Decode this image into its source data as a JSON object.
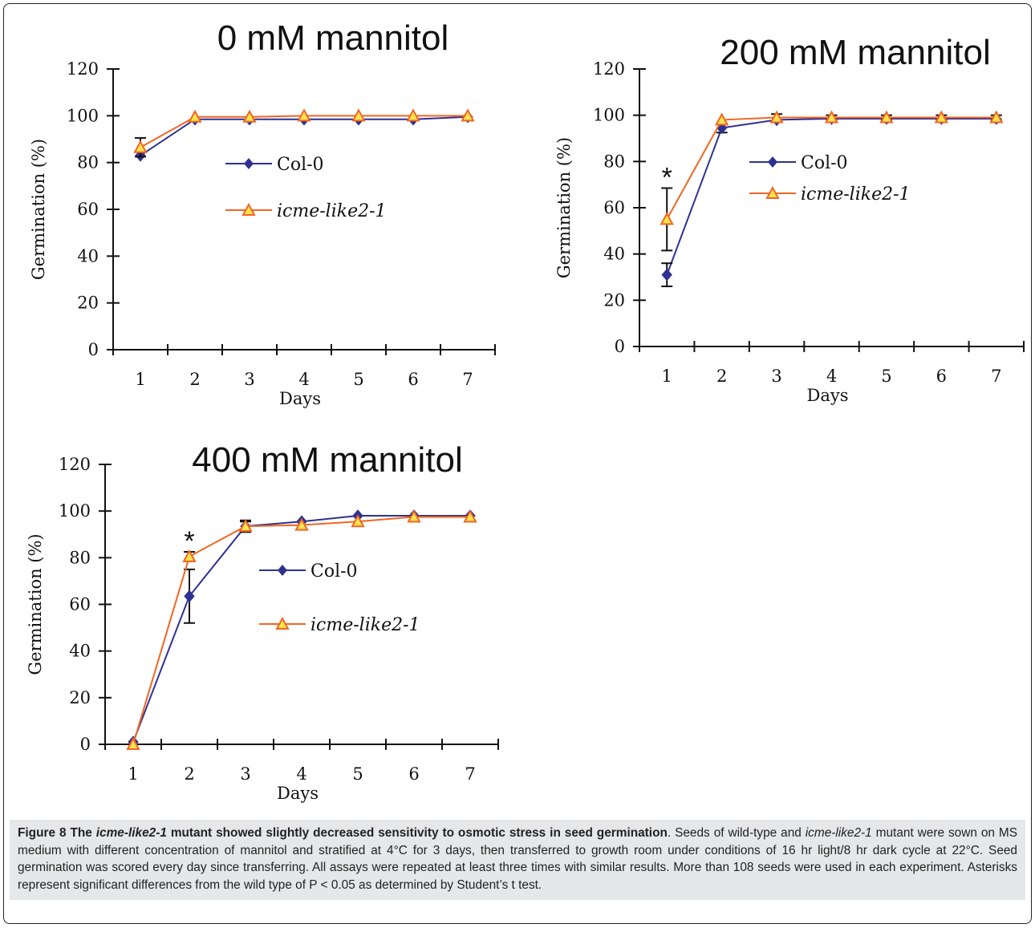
{
  "chart_data": [
    {
      "type": "line",
      "title": "0 mM mannitol",
      "xlabel": "Days",
      "ylabel": "Germination (%)",
      "categories": [
        "1",
        "2",
        "3",
        "4",
        "5",
        "6",
        "7"
      ],
      "ylim": [
        0,
        120
      ],
      "yticks": [
        "0",
        "20",
        "40",
        "60",
        "80",
        "100",
        "120"
      ],
      "legend_position": "middle",
      "series": [
        {
          "name": "Col-0",
          "values": [
            83,
            98.5,
            98.5,
            98.5,
            98.5,
            98.5,
            99.5
          ],
          "color": "#2e3192",
          "marker": "diamond"
        },
        {
          "name": "icme-like2-1",
          "values": [
            86.5,
            99.5,
            99.5,
            100,
            100,
            100,
            100
          ],
          "color": "#f26522",
          "marker": "triangle",
          "errors": [
            4,
            0,
            0,
            0,
            0,
            0,
            0
          ]
        }
      ],
      "annotations": []
    },
    {
      "type": "line",
      "title": "200 mM mannitol",
      "xlabel": "Days",
      "ylabel": "Germination (%)",
      "categories": [
        "1",
        "2",
        "3",
        "4",
        "5",
        "6",
        "7"
      ],
      "ylim": [
        0,
        120
      ],
      "yticks": [
        "0",
        "20",
        "40",
        "60",
        "80",
        "100",
        "120"
      ],
      "legend_position": "middle",
      "series": [
        {
          "name": "Col-0",
          "values": [
            31,
            94.5,
            98,
            98.5,
            98.5,
            98.5,
            98.5
          ],
          "color": "#2e3192",
          "marker": "diamond",
          "errors": [
            5,
            2,
            0,
            0,
            0,
            0,
            0
          ]
        },
        {
          "name": "icme-like2-1",
          "values": [
            55,
            98,
            99,
            99,
            99,
            99,
            99
          ],
          "color": "#f26522",
          "marker": "triangle",
          "errors": [
            13.5,
            0,
            1.5,
            1,
            1,
            1,
            1
          ]
        }
      ],
      "annotations": [
        {
          "text": "*",
          "x": "1"
        }
      ]
    },
    {
      "type": "line",
      "title": "400 mM mannitol",
      "xlabel": "Days",
      "ylabel": "Germination (%)",
      "categories": [
        "1",
        "2",
        "3",
        "4",
        "5",
        "6",
        "7"
      ],
      "ylim": [
        0,
        120
      ],
      "yticks": [
        "0",
        "20",
        "40",
        "60",
        "80",
        "100",
        "120"
      ],
      "legend_position": "middle",
      "series": [
        {
          "name": "Col-0",
          "values": [
            1,
            63.5,
            93.5,
            95.5,
            98,
            98,
            98
          ],
          "color": "#2e3192",
          "marker": "diamond",
          "errors": [
            0,
            11.5,
            2.5,
            0,
            0,
            0,
            0
          ]
        },
        {
          "name": "icme-like2-1",
          "values": [
            0,
            80.5,
            93.5,
            94,
            95.5,
            97.5,
            97.5
          ],
          "color": "#f26522",
          "marker": "triangle",
          "errors": [
            0,
            2,
            2,
            0,
            0,
            0,
            0
          ]
        }
      ],
      "annotations": [
        {
          "text": "*",
          "x": "2"
        }
      ]
    }
  ],
  "caption": {
    "bold_prefix": "Figure 8 The ",
    "bold_italic": "icme-like2-1",
    "bold_suffix": " mutant showed slightly decreased sensitivity to osmotic stress in seed germination",
    "text_1": ". Seeds of wild-type and ",
    "italic_1": "icme-like2-1",
    "text_2": " mutant were sown on MS medium with different concentration of mannitol and stratified at 4°C for 3 days, then transferred to growth room under conditions of 16 hr light/8 hr dark cycle at 22°C. Seed germination was scored every day since transferring. All assays were repeated at least three times with similar results. More than 108 seeds were used in each experiment. Asterisks represent significant differences from the wild type of P < 0.05 as determined by Student’s t test."
  }
}
